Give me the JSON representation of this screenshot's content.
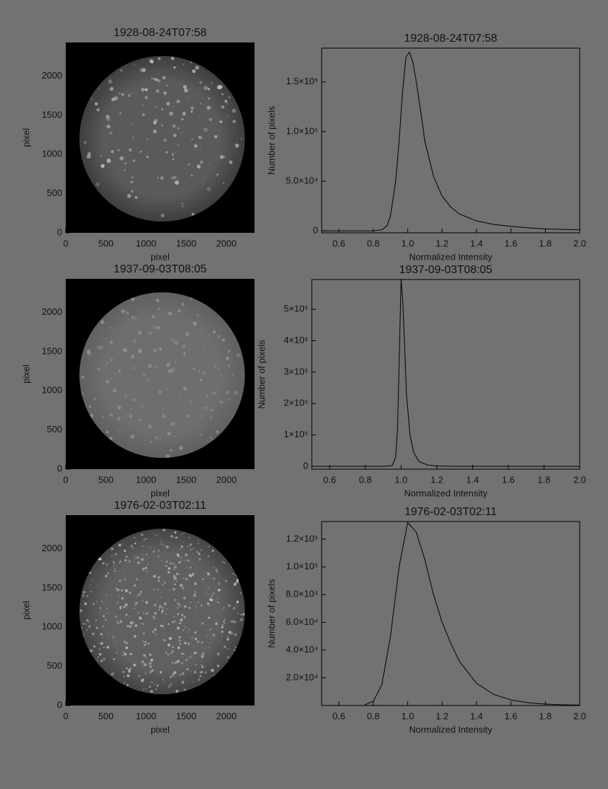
{
  "chart_data": [
    {
      "type": "image",
      "title": "1928-08-24T07:58",
      "xlabel": "pixel",
      "ylabel": "pixel",
      "xlim": [
        0,
        2350
      ],
      "ylim": [
        0,
        2430
      ],
      "xticks": [
        0,
        500,
        1000,
        1500,
        2000
      ],
      "yticks": [
        0,
        500,
        1000,
        1500,
        2000
      ]
    },
    {
      "type": "line",
      "title": "1928-08-24T07:58",
      "xlabel": "Normalized Intensity",
      "ylabel": "Number of pixels",
      "color": "#000000",
      "x": [
        0.5,
        0.7,
        0.8,
        0.85,
        0.88,
        0.9,
        0.93,
        0.95,
        0.97,
        0.99,
        1.01,
        1.03,
        1.05,
        1.08,
        1.1,
        1.15,
        1.2,
        1.25,
        1.3,
        1.4,
        1.5,
        1.6,
        1.7,
        1.8,
        1.9,
        2.0
      ],
      "values": [
        0,
        0,
        0,
        1000,
        5000,
        15000,
        50000,
        90000,
        140000,
        175000,
        180000,
        170000,
        150000,
        115000,
        90000,
        55000,
        35000,
        24000,
        17000,
        10000,
        6500,
        4500,
        3000,
        2000,
        1500,
        1000
      ],
      "xlim": [
        0.5,
        2.0
      ],
      "ylim": [
        -2000,
        184000
      ],
      "xticks": [
        0.6,
        0.8,
        {
          "value": 1,
          "label": "1.0"
        },
        1.2,
        1.4,
        1.6,
        1.8,
        {
          "value": 2,
          "label": "2.0"
        }
      ],
      "yticks": [
        0,
        {
          "value": 50000,
          "label": "5.0×10⁴"
        },
        {
          "value": 100000,
          "label": "1.0×10⁵"
        },
        {
          "value": 150000,
          "label": "1.5×10⁵"
        }
      ]
    },
    {
      "type": "image",
      "title": "1937-09-03T08:05",
      "xlabel": "pixel",
      "ylabel": "pixel",
      "xlim": [
        0,
        2350
      ],
      "ylim": [
        0,
        2430
      ],
      "xticks": [
        0,
        500,
        1000,
        1500,
        2000
      ],
      "yticks": [
        0,
        500,
        1000,
        1500,
        2000
      ]
    },
    {
      "type": "line",
      "title": "1937-09-03T08:05",
      "xlabel": "Normalized Intensity",
      "ylabel": "Number of pixels",
      "color": "#000000",
      "x": [
        0.5,
        0.9,
        0.95,
        0.97,
        0.98,
        0.99,
        1.0,
        1.01,
        1.02,
        1.03,
        1.05,
        1.07,
        1.1,
        1.15,
        1.2,
        1.3,
        2.0
      ],
      "values": [
        0,
        0,
        2000,
        30000,
        120000,
        350000,
        595000,
        520000,
        380000,
        230000,
        100000,
        45000,
        15000,
        4000,
        1000,
        0,
        0
      ],
      "xlim": [
        0.5,
        2.0
      ],
      "ylim": [
        -9000,
        595000
      ],
      "xticks": [
        0.6,
        0.8,
        {
          "value": 1,
          "label": "1.0"
        },
        1.2,
        1.4,
        1.6,
        1.8,
        {
          "value": 2,
          "label": "2.0"
        }
      ],
      "yticks": [
        0,
        {
          "value": 100000,
          "label": "1×10⁵"
        },
        {
          "value": 200000,
          "label": "2×10⁵"
        },
        {
          "value": 300000,
          "label": "3×10⁵"
        },
        {
          "value": 400000,
          "label": "4×10⁵"
        },
        {
          "value": 500000,
          "label": "5×10⁵"
        }
      ]
    },
    {
      "type": "image",
      "title": "1976-02-03T02:11",
      "xlabel": "pixel",
      "ylabel": "pixel",
      "xlim": [
        0,
        2350
      ],
      "ylim": [
        0,
        2430
      ],
      "xticks": [
        0,
        500,
        1000,
        1500,
        2000
      ],
      "yticks": [
        0,
        500,
        1000,
        1500,
        2000
      ]
    },
    {
      "type": "line",
      "title": "1976-02-03T02:11",
      "xlabel": "Normalized Intensity",
      "ylabel": "Number of pixels",
      "color": "#000000",
      "x": [
        0.75,
        0.8,
        0.85,
        0.9,
        0.95,
        1.0,
        1.05,
        1.1,
        1.15,
        1.2,
        1.25,
        1.3,
        1.4,
        1.5,
        1.6,
        1.7,
        1.8,
        1.9,
        2.0
      ],
      "values": [
        500,
        3000,
        15000,
        50000,
        100000,
        132000,
        125000,
        105000,
        80000,
        60000,
        45000,
        32000,
        16000,
        8000,
        4000,
        2000,
        1000,
        500,
        300
      ],
      "xlim": [
        0.5,
        2.0
      ],
      "ylim": [
        0,
        132700
      ],
      "xticks": [
        0.6,
        0.8,
        {
          "value": 1,
          "label": "1.0"
        },
        1.2,
        1.4,
        1.6,
        1.8,
        {
          "value": 2,
          "label": "2.0"
        }
      ],
      "yticks": [
        {
          "value": 20000,
          "label": "2.0×10⁴"
        },
        {
          "value": 40000,
          "label": "4.0×10⁴"
        },
        {
          "value": 60000,
          "label": "6.0×10⁴"
        },
        {
          "value": 80000,
          "label": "8.0×10⁴"
        },
        {
          "value": 100000,
          "label": "1.0×10⁵"
        },
        {
          "value": 120000,
          "label": "1.2×10⁵"
        }
      ]
    }
  ]
}
